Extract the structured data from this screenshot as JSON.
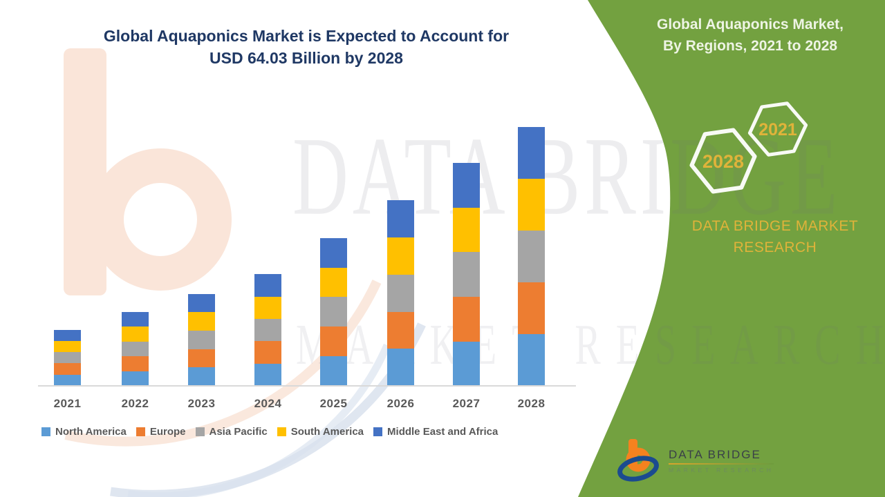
{
  "main_title": {
    "line1": "Global Aquaponics Market is Expected to Account for",
    "line2": "USD 64.03 Billion by 2028"
  },
  "side_panel": {
    "bg_color": "#73A140",
    "accent_gold": "#E0B33A",
    "title_line1": "Global Aquaponics Market,",
    "title_line2": "By Regions, 2021 to 2028",
    "hex_badges": [
      {
        "label": "2021"
      },
      {
        "label": "2028"
      }
    ],
    "brand_line1": "DATA BRIDGE MARKET",
    "brand_line2": "RESEARCH",
    "logo": {
      "name": "DATA BRIDGE",
      "subtext": "MARKET RESEARCH"
    }
  },
  "watermark": {
    "line1": "DATA BRIDGE",
    "line2": "MARKET RESEARCH"
  },
  "chart_data": {
    "type": "bar",
    "variant": "stacked",
    "title": "Global Aquaponics Market is Expected to Account for USD 64.03 Billion by 2028",
    "unit": "USD Billion",
    "categories": [
      "2021",
      "2022",
      "2023",
      "2024",
      "2025",
      "2026",
      "2027",
      "2028"
    ],
    "totals": [
      13.9,
      18.3,
      22.8,
      27.6,
      36.6,
      45.9,
      55.1,
      64.03
    ],
    "series": [
      {
        "name": "North America",
        "color": "#5B9BD5",
        "values": [
          2.78,
          3.66,
          4.56,
          5.52,
          7.32,
          9.18,
          11.02,
          12.81
        ]
      },
      {
        "name": "Europe",
        "color": "#ED7D31",
        "values": [
          2.78,
          3.66,
          4.56,
          5.52,
          7.32,
          9.18,
          11.02,
          12.81
        ]
      },
      {
        "name": "Asia Pacific",
        "color": "#A5A5A5",
        "values": [
          2.78,
          3.66,
          4.56,
          5.52,
          7.32,
          9.18,
          11.02,
          12.81
        ]
      },
      {
        "name": "South America",
        "color": "#FFC000",
        "values": [
          2.78,
          3.66,
          4.56,
          5.52,
          7.32,
          9.18,
          11.02,
          12.81
        ]
      },
      {
        "name": "Middle East and Africa",
        "color": "#4472C4",
        "values": [
          2.78,
          3.66,
          4.56,
          5.52,
          7.32,
          9.18,
          11.02,
          12.81
        ]
      }
    ],
    "stack_order_bottom_to_top": [
      "North America",
      "Europe",
      "Asia Pacific",
      "South America",
      "Middle East and Africa"
    ],
    "ylim": [
      0,
      64.03
    ],
    "gridlines": false,
    "legend_position": "bottom",
    "axis_colors": {
      "baseline": "#D9D9D9",
      "tick_labels": "#595959"
    }
  }
}
